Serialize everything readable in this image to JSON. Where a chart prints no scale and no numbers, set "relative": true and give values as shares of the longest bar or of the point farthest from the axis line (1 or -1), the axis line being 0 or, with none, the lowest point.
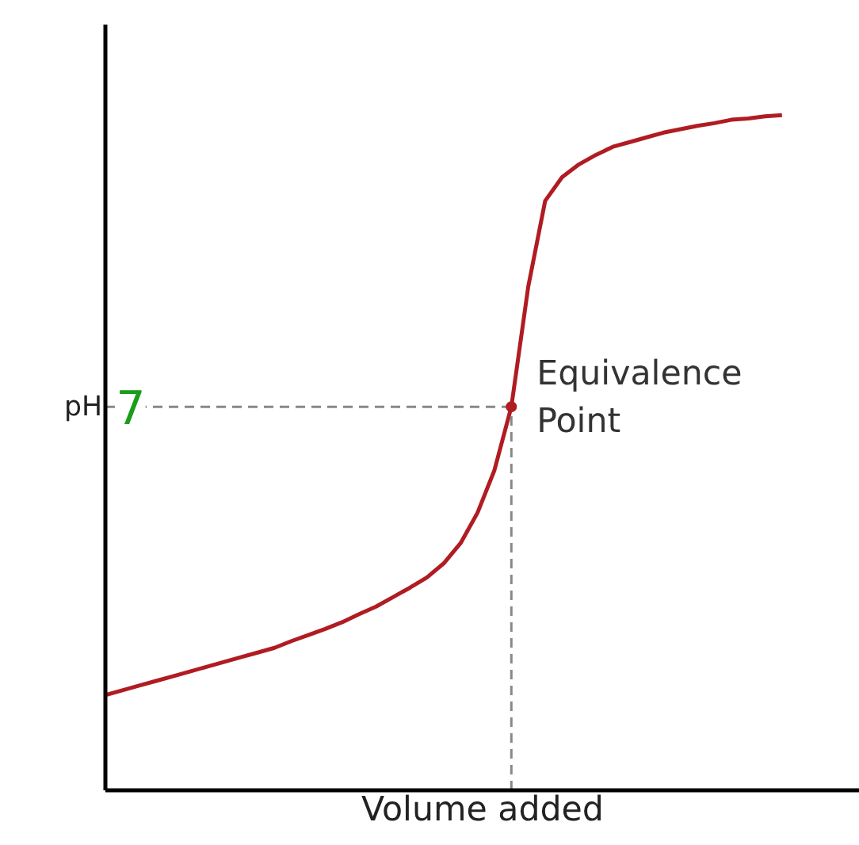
{
  "chart_data": {
    "type": "line",
    "relative": true,
    "xlabel": "Volume added",
    "ylabel": "pH",
    "categories": [
      null,
      null,
      null,
      null,
      null,
      null,
      null,
      null,
      null,
      null,
      null,
      null,
      null,
      null,
      null,
      null,
      null,
      null,
      null,
      null,
      null,
      null,
      null,
      null,
      null,
      null,
      null,
      null,
      null,
      null,
      null,
      null,
      null,
      null,
      null,
      null,
      null,
      null,
      null,
      null,
      null
    ],
    "series": [
      {
        "color": "#b01c22",
        "values": [
          0.141,
          0.148,
          0.155,
          0.162,
          0.169,
          0.176,
          0.183,
          0.19,
          0.197,
          0.204,
          0.211,
          0.221,
          0.23,
          0.239,
          0.249,
          0.261,
          0.272,
          0.286,
          0.3,
          0.315,
          0.336,
          0.366,
          0.411,
          0.474,
          0.568,
          0.746,
          0.873,
          0.908,
          0.927,
          0.941,
          0.953,
          0.96,
          0.967,
          0.974,
          0.979,
          0.984,
          0.988,
          0.993,
          0.995,
          0.998,
          1
        ]
      }
    ],
    "ref_lines": [
      {
        "axis": "y",
        "value": 0.568,
        "color": "#888888",
        "line_style": "dashed"
      }
    ],
    "annotations": [
      "Equivalence Point",
      "7"
    ],
    "marker": "none",
    "line_style": "solid"
  }
}
